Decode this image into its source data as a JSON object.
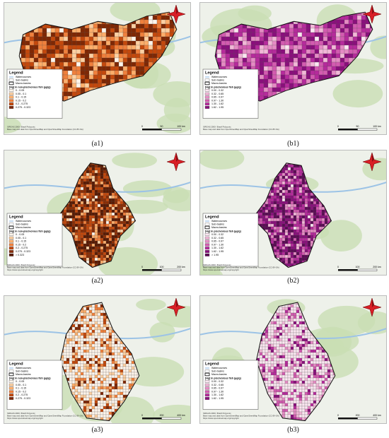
{
  "panels": [
    {
      "caption": "(a1)",
      "legend": {
        "title": "Legend",
        "layers": [
          "Watercourses",
          "Sub-basins",
          "Macro-basins"
        ],
        "class_title": "[Hg] in non-piscivorous fish (µg/g)",
        "classes": [
          "0 - 0.05",
          "0.05 - 0.1",
          "0.1 - 0.15",
          "0.15 - 0.2",
          "0.2 - 0.275",
          "0.275 - 0.323"
        ],
        "colors": [
          "#fff5eb",
          "#fdd0a2",
          "#fdae6b",
          "#f0803c",
          "#c4480c",
          "#7f2704"
        ]
      },
      "scale": [
        "0",
        "50",
        "100 km"
      ],
      "credits": [
        "SIRGAS 2000 / Brazil Polyconic",
        "Base map and data from OpenStreetMap and OpenStreetMap Foundation (CC-BY-SA)"
      ]
    },
    {
      "caption": "(b1)",
      "legend": {
        "title": "Legend",
        "layers": [
          "Watercourses",
          "Sub-basins",
          "Macro-basins"
        ],
        "class_title": "[Hg] in piscivorous fish (µg/g)",
        "classes": [
          "0.00 - 0.32",
          "0.32 - 0.65",
          "0.65 - 0.97",
          "0.97 - 1.30",
          "1.30 - 1.62",
          "1.62 - 1.95"
        ],
        "colors": [
          "#fbe6f1",
          "#f2b8d8",
          "#e58bc4",
          "#d35bb0",
          "#b62a9c",
          "#8a0f7c"
        ]
      },
      "scale": [
        "0",
        "50",
        "100 km"
      ],
      "credits": [
        "SIRGAS 2000 / Brazil Polyconic",
        "Base map and data from OpenStreetMap and OpenStreetMap Foundation (CC-BY-SA)"
      ]
    },
    {
      "caption": "(a2)",
      "legend": {
        "title": "Legend",
        "layers": [
          "Watercourses",
          "Sub-basins",
          "Macro-basins"
        ],
        "class_title": "[Hg] in non-piscivorous fish (µg/g)",
        "classes": [
          "0 - 0.05",
          "0.05 - 0.1",
          "0.1 - 0.15",
          "0.15 - 0.2",
          "0.2 - 0.275",
          "0.275 - 0.323",
          "> 0.323"
        ],
        "colors": [
          "#fff5eb",
          "#fdd0a2",
          "#fdae6b",
          "#f0803c",
          "#c4480c",
          "#8c2d04",
          "#5a1a02"
        ]
      },
      "scale": [
        "0",
        "100",
        "200 km"
      ],
      "credits": [
        "SIRGAS 2000 / Brazil Polyconic",
        "Base map and data from OpenStreetMap and OpenStreetMap Foundation (CC-BY-SA)",
        "https://www.openstreetmap.org/copyright"
      ]
    },
    {
      "caption": "(b2)",
      "legend": {
        "title": "Legend",
        "layers": [
          "Watercourses",
          "Sub-basins",
          "Macro-basins"
        ],
        "class_title": "[Hg] in piscivorous fish (µg/g)",
        "classes": [
          "0.00 - 0.32",
          "0.32 - 0.65",
          "0.65 - 0.97",
          "0.97 - 1.30",
          "1.30 - 1.62",
          "1.62 - 1.95",
          "> 1.95"
        ],
        "colors": [
          "#fbe6f1",
          "#f2b8d8",
          "#e58bc4",
          "#d35bb0",
          "#b62a9c",
          "#8a0f7c",
          "#5c0a55"
        ]
      },
      "scale": [
        "0",
        "100",
        "200 km"
      ],
      "credits": [
        "SIRGAS 2000 / Brazil Polyconic",
        "Base map and data from OpenStreetMap and OpenStreetMap Foundation (CC-BY-SA)",
        "https://www.openstreetmap.org/copyright"
      ]
    },
    {
      "caption": "(a3)",
      "legend": {
        "title": "Legend",
        "layers": [
          "Watercourses",
          "Sub-basins",
          "Macro-basins"
        ],
        "class_title": "[Hg] in non-piscivorous fish (µg/g)",
        "classes": [
          "0 - 0.05",
          "0.05 - 0.1",
          "0.1 - 0.15",
          "0.15 - 0.2",
          "0.2 - 0.275",
          "0.275 - 0.323"
        ],
        "colors": [
          "#fff5eb",
          "#fdd0a2",
          "#fdae6b",
          "#f0803c",
          "#c4480c",
          "#7f2704"
        ]
      },
      "scale": [
        "0",
        "200",
        "400 km"
      ],
      "credits": [
        "SIRGAS 2000 / Brazil Polyconic",
        "Base map and data from OpenStreetMap and OpenStreetMap Foundation (CC-BY-SA)",
        "https://www.openstreetmap.org/copyright"
      ]
    },
    {
      "caption": "(b3)",
      "legend": {
        "title": "Legend",
        "layers": [
          "Watercourses",
          "Sub-basins",
          "Macro-basins"
        ],
        "class_title": "[Hg] in piscivorous fish (µg/g)",
        "classes": [
          "0.00 - 0.32",
          "0.32 - 0.65",
          "0.65 - 0.97",
          "0.97 - 1.30",
          "1.30 - 1.62",
          "1.62 - 1.95"
        ],
        "colors": [
          "#fbe6f1",
          "#f2b8d8",
          "#e58bc4",
          "#d35bb0",
          "#b62a9c",
          "#8a0f7c"
        ]
      },
      "scale": [
        "0",
        "200",
        "400 km"
      ],
      "credits": [
        "SIRGAS 2000 / Brazil Polyconic",
        "Base map and data from OpenStreetMap and OpenStreetMap Foundation (CC-BY-SA)",
        "https://www.openstreetmap.org/copyright"
      ]
    }
  ]
}
